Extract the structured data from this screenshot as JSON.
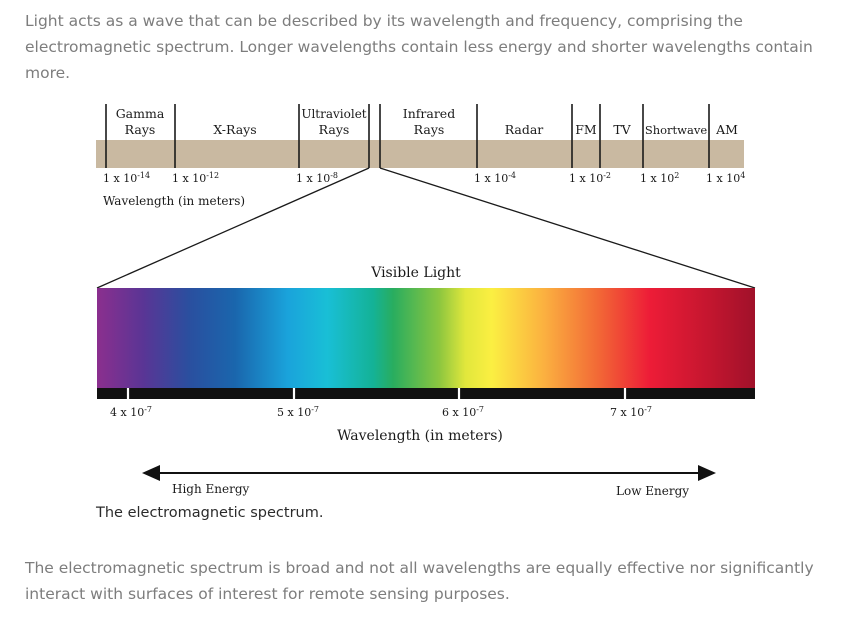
{
  "intro_text": "Light acts as a wave that can be described by its wavelength and frequency, comprising the electromagnetic spectrum. Longer wavelengths contain less energy and shorter wavelengths contain more.",
  "diagram": {
    "band_labels": {
      "gamma_1": "Gamma",
      "gamma_2": "Rays",
      "xray": "X-Rays",
      "uv_1": "Ultraviolet",
      "uv_2": "Rays",
      "ir_1": "Infrared",
      "ir_2": "Rays",
      "radar": "Radar",
      "fm": "FM",
      "tv": "TV",
      "shortwave": "Shortwave",
      "am": "AM"
    },
    "scale_ticks": [
      {
        "base": "1 x 10",
        "exp": "-14"
      },
      {
        "base": "1 x 10",
        "exp": "-12"
      },
      {
        "base": "1 x 10",
        "exp": "-8"
      },
      {
        "base": "1 x 10",
        "exp": "-4"
      },
      {
        "base": "1 x 10",
        "exp": "-2"
      },
      {
        "base": "1 x 10",
        "exp": "2"
      },
      {
        "base": "1 x 10",
        "exp": "4"
      }
    ],
    "top_axis_label": "Wavelength (in meters)",
    "visible_title": "Visible Light",
    "visible_ticks": [
      {
        "base": "4 x 10",
        "exp": "-7"
      },
      {
        "base": "5 x 10",
        "exp": "-7"
      },
      {
        "base": "6 x 10",
        "exp": "-7"
      },
      {
        "base": "7 x 10",
        "exp": "-7"
      }
    ],
    "bottom_axis_label": "Wavelength (in meters)",
    "high_energy": "High Energy",
    "low_energy": "Low Energy",
    "colors": {
      "band": "#c9b9a1",
      "spectrum": [
        "#8b2f8e",
        "#4a3a9a",
        "#1e5fa8",
        "#1c9fd8",
        "#1bbdd6",
        "#14b29a",
        "#2fb35c",
        "#8cc63f",
        "#f4ec3f",
        "#fbb040",
        "#f26a36",
        "#ee2436",
        "#c4162f",
        "#a3122a"
      ]
    }
  },
  "caption": "The electromagnetic spectrum.",
  "outro_text": "The electromagnetic spectrum is broad and not all wavelengths are equally effective nor significantly interact with surfaces of interest for remote sensing purposes."
}
